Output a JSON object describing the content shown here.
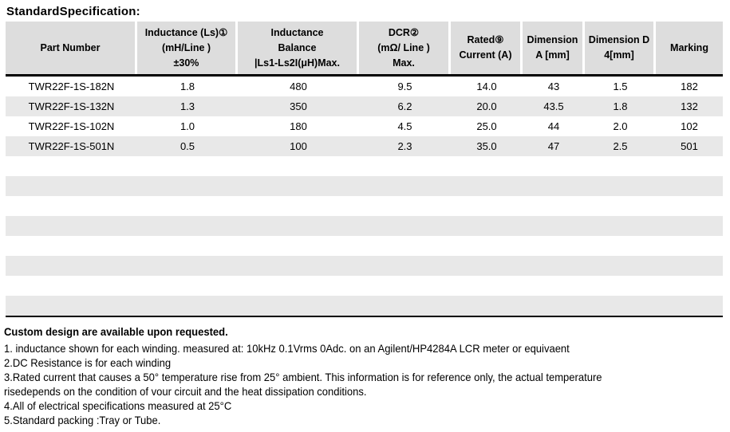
{
  "title": "StandardSpecification:",
  "table": {
    "columns": [
      {
        "id": "part-number",
        "label_lines": [
          "Part Number"
        ]
      },
      {
        "id": "inductance",
        "label_lines": [
          "Inductance (Ls)①",
          "(mH/Line )",
          "±30%"
        ]
      },
      {
        "id": "inductance-balance",
        "label_lines": [
          "Inductance",
          "Balance",
          "|Ls1-Ls2I(μH)Max."
        ]
      },
      {
        "id": "dcr",
        "label_lines": [
          "DCR②",
          "(mΩ/ Line )",
          "Max."
        ]
      },
      {
        "id": "rated-current",
        "label_lines": [
          "Rated⑨",
          "Current (A)"
        ]
      },
      {
        "id": "dimension-a",
        "label_lines": [
          "Dimension",
          "A [mm]"
        ]
      },
      {
        "id": "dimension-d4",
        "label_lines": [
          "Dimension D",
          "4[mm]"
        ]
      },
      {
        "id": "marking",
        "label_lines": [
          "Marking"
        ]
      }
    ],
    "rows": [
      [
        "TWR22F-1S-182N",
        "1.8",
        "480",
        "9.5",
        "14.0",
        "43",
        "1.5",
        "182"
      ],
      [
        "TWR22F-1S-132N",
        "1.3",
        "350",
        "6.2",
        "20.0",
        "43.5",
        "1.8",
        "132"
      ],
      [
        "TWR22F-1S-102N",
        "1.0",
        "180",
        "4.5",
        "25.0",
        "44",
        "2.0",
        "102"
      ],
      [
        "TWR22F-1S-501N",
        "0.5",
        "100",
        "2.3",
        "35.0",
        "47",
        "2.5",
        "501"
      ]
    ],
    "empty_row_count": 8
  },
  "notes": {
    "heading": "Custom design are available upon requested.",
    "lines": [
      "1. inductance shown for each winding. measured at: 10kHz 0.1Vrms 0Adc. on an Agilent/HP4284A LCR meter or equivaent",
      "2.DC Resistance is for each winding",
      "3.Rated current that causes a 50° temperature rise from 25° ambient. This information is for reference only, the actual temperature",
      "risedepends on the condition of vour circuit and the heat dissipation conditions.",
      "4.All of electrical specifications measured at 25°C",
      "5.Standard packing :Tray or Tube."
    ]
  },
  "colors": {
    "header_bg": "#dddddd",
    "stripe_bg": "#e8e8e8",
    "border": "#000000"
  }
}
